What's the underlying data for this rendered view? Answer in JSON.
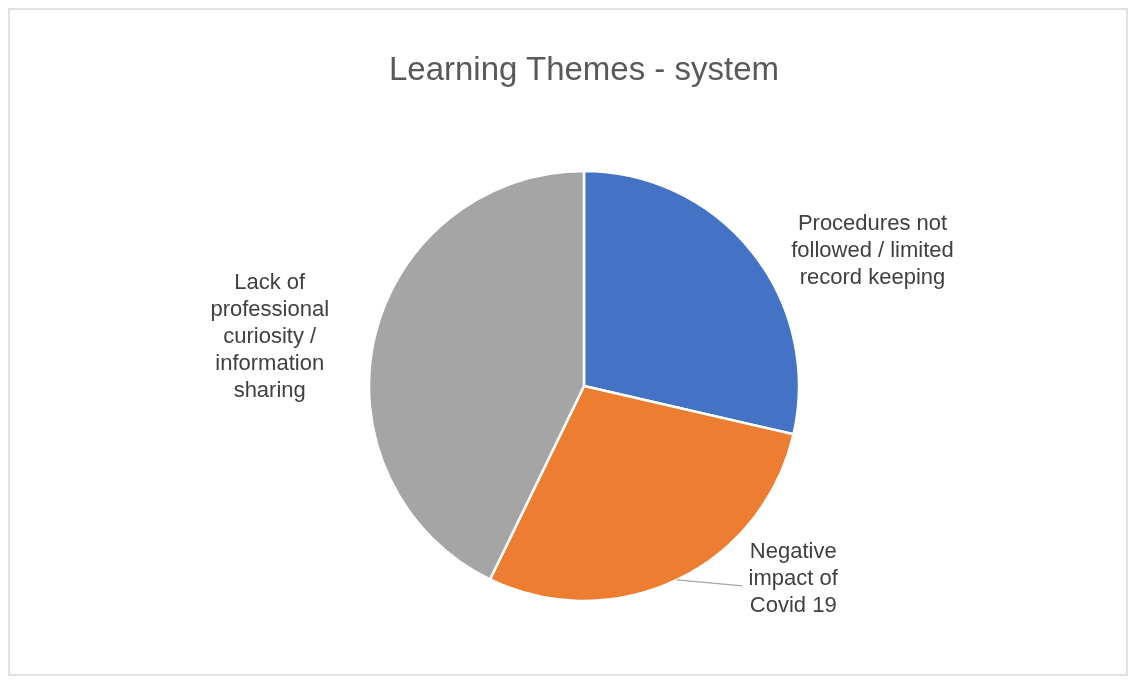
{
  "chart_data": {
    "type": "pie",
    "title": "Learning Themes - system",
    "categories": [
      "Procedures not followed / limited record keeping",
      "Negative impact of Covid 19",
      "Lack of professional curiosity / information sharing"
    ],
    "values": [
      28.6,
      28.6,
      42.8
    ],
    "colors": [
      "#4472c4",
      "#ed7d31",
      "#a5a5a5"
    ]
  }
}
